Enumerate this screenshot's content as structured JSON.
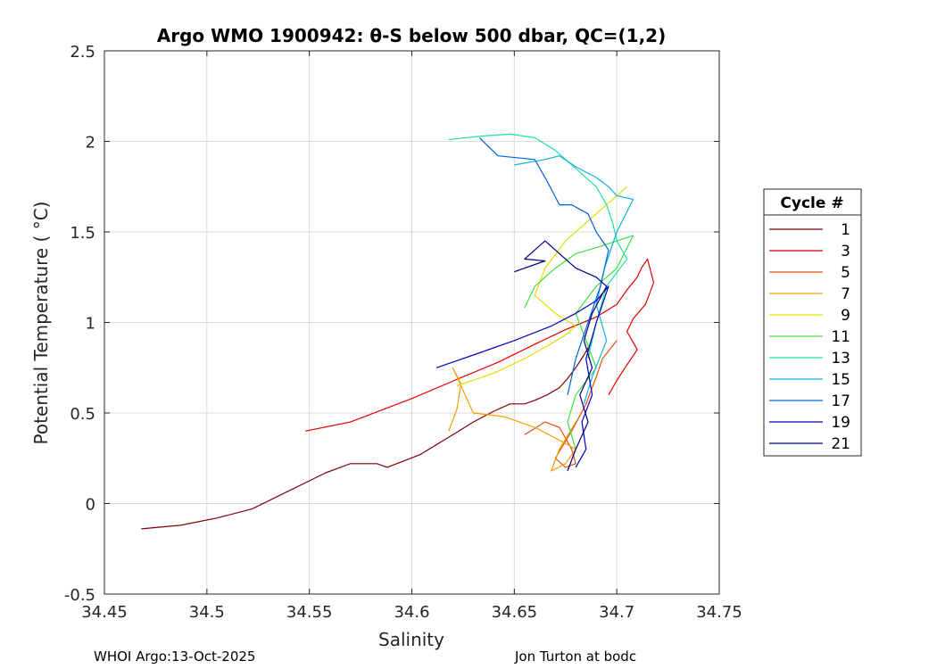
{
  "chart_data": {
    "type": "line",
    "title": "Argo WMO 1900942: θ-S below 500 dbar,  QC=(1,2)",
    "xlabel": "Salinity",
    "ylabel": "Potential Temperature ( °C)",
    "xlim": [
      34.45,
      34.75
    ],
    "ylim": [
      -0.5,
      2.5
    ],
    "x_ticks": [
      "34.45",
      "34.5",
      "34.55",
      "34.6",
      "34.65",
      "34.7",
      "34.75"
    ],
    "y_ticks": [
      "-0.5",
      "0",
      "0.5",
      "1",
      "1.5",
      "2",
      "2.5"
    ],
    "grid": true,
    "legend": {
      "title": "Cycle #",
      "position": "right",
      "entries": [
        {
          "label": "1",
          "color": "#800000"
        },
        {
          "label": "3",
          "color": "#e00000"
        },
        {
          "label": "5",
          "color": "#e05010"
        },
        {
          "label": "7",
          "color": "#f0a000"
        },
        {
          "label": "9",
          "color": "#e0e000"
        },
        {
          "label": "11",
          "color": "#40e040"
        },
        {
          "label": "13",
          "color": "#20e0a0"
        },
        {
          "label": "15",
          "color": "#10b0e0"
        },
        {
          "label": "17",
          "color": "#0060e0"
        },
        {
          "label": "19",
          "color": "#0000c0"
        },
        {
          "label": "21",
          "color": "#000080"
        }
      ]
    },
    "series": [
      {
        "name": "1",
        "color": "#800000",
        "x": [
          34.468,
          34.487,
          34.505,
          34.522,
          34.54,
          34.558,
          34.57,
          34.578,
          34.583,
          34.588,
          34.604,
          34.62,
          34.63,
          34.64,
          34.648,
          34.655,
          34.66,
          34.666,
          34.672,
          34.676,
          34.68,
          34.684,
          34.688
        ],
        "y": [
          -0.14,
          -0.12,
          -0.08,
          -0.03,
          0.07,
          0.17,
          0.22,
          0.22,
          0.22,
          0.2,
          0.27,
          0.38,
          0.45,
          0.51,
          0.55,
          0.55,
          0.57,
          0.6,
          0.64,
          0.69,
          0.75,
          0.82,
          0.9
        ]
      },
      {
        "name": "3",
        "color": "#e00000",
        "x": [
          34.548,
          34.57,
          34.6,
          34.625,
          34.642,
          34.66,
          34.675,
          34.69,
          34.7,
          34.705,
          34.71,
          34.712,
          34.715,
          34.718,
          34.714,
          34.708,
          34.705,
          34.71,
          34.704,
          34.7,
          34.696
        ],
        "y": [
          0.4,
          0.45,
          0.58,
          0.7,
          0.78,
          0.88,
          0.96,
          1.03,
          1.1,
          1.18,
          1.25,
          1.3,
          1.35,
          1.22,
          1.1,
          1.02,
          0.95,
          0.85,
          0.75,
          0.68,
          0.6
        ]
      },
      {
        "name": "5",
        "color": "#e05010",
        "x": [
          34.655,
          34.665,
          34.672,
          34.678,
          34.68,
          34.675,
          34.67,
          34.678,
          34.685,
          34.69,
          34.693,
          34.7
        ],
        "y": [
          0.38,
          0.45,
          0.42,
          0.3,
          0.22,
          0.2,
          0.25,
          0.4,
          0.55,
          0.7,
          0.8,
          0.9
        ]
      },
      {
        "name": "7",
        "color": "#f0a000",
        "x": [
          34.618,
          34.622,
          34.624,
          34.62,
          34.63,
          34.645,
          34.66,
          34.672,
          34.68,
          34.675,
          34.668,
          34.672,
          34.68
        ],
        "y": [
          0.4,
          0.52,
          0.66,
          0.75,
          0.5,
          0.48,
          0.42,
          0.35,
          0.3,
          0.22,
          0.18,
          0.3,
          0.45
        ]
      },
      {
        "name": "9",
        "color": "#e0e000",
        "x": [
          34.622,
          34.64,
          34.655,
          34.666,
          34.675,
          34.68,
          34.67,
          34.66,
          34.665,
          34.675,
          34.69,
          34.7,
          34.705
        ],
        "y": [
          0.65,
          0.72,
          0.8,
          0.87,
          0.93,
          0.98,
          1.05,
          1.15,
          1.3,
          1.45,
          1.6,
          1.7,
          1.75
        ]
      },
      {
        "name": "11",
        "color": "#40e040",
        "x": [
          34.655,
          34.66,
          34.67,
          34.68,
          34.692,
          34.7,
          34.708,
          34.7,
          34.69,
          34.68,
          34.685,
          34.69,
          34.68,
          34.676,
          34.68
        ],
        "y": [
          1.08,
          1.2,
          1.3,
          1.38,
          1.42,
          1.45,
          1.48,
          1.3,
          1.2,
          1.05,
          0.9,
          0.75,
          0.6,
          0.45,
          0.3
        ]
      },
      {
        "name": "13",
        "color": "#20e0a0",
        "x": [
          34.618,
          34.635,
          34.648,
          34.66,
          34.67,
          34.68,
          34.69,
          34.695,
          34.698,
          34.7,
          34.705,
          34.695,
          34.69,
          34.686
        ],
        "y": [
          2.01,
          2.03,
          2.04,
          2.02,
          1.95,
          1.85,
          1.75,
          1.65,
          1.55,
          1.45,
          1.35,
          1.2,
          1.0,
          0.8
        ]
      },
      {
        "name": "15",
        "color": "#10b0e0",
        "x": [
          34.65,
          34.665,
          34.672,
          34.68,
          34.69,
          34.696,
          34.7,
          34.708,
          34.7,
          34.694,
          34.69,
          34.695,
          34.688,
          34.684
        ],
        "y": [
          1.87,
          1.9,
          1.92,
          1.86,
          1.8,
          1.75,
          1.7,
          1.68,
          1.5,
          1.3,
          1.1,
          0.9,
          0.7,
          0.55
        ]
      },
      {
        "name": "17",
        "color": "#0060e0",
        "x": [
          34.633,
          34.642,
          34.66,
          34.666,
          34.672,
          34.678,
          34.686,
          34.69,
          34.696,
          34.692,
          34.686,
          34.68,
          34.676
        ],
        "y": [
          2.02,
          1.92,
          1.9,
          1.78,
          1.65,
          1.65,
          1.6,
          1.5,
          1.4,
          1.2,
          1.0,
          0.8,
          0.6
        ]
      },
      {
        "name": "19",
        "color": "#0000c0",
        "x": [
          34.612,
          34.63,
          34.65,
          34.668,
          34.68,
          34.69,
          34.696,
          34.69,
          34.685,
          34.688,
          34.683,
          34.685,
          34.68
        ],
        "y": [
          0.75,
          0.82,
          0.9,
          0.98,
          1.05,
          1.12,
          1.2,
          1.0,
          0.8,
          0.6,
          0.45,
          0.3,
          0.2
        ]
      },
      {
        "name": "21",
        "color": "#000080",
        "x": [
          34.65,
          34.665,
          34.655,
          34.665,
          34.68,
          34.69,
          34.695,
          34.688,
          34.684,
          34.688,
          34.682,
          34.686,
          34.68,
          34.676
        ],
        "y": [
          1.28,
          1.34,
          1.35,
          1.45,
          1.3,
          1.25,
          1.2,
          1.05,
          0.9,
          0.75,
          0.6,
          0.45,
          0.3,
          0.18
        ]
      }
    ]
  },
  "footer": {
    "left": "WHOI Argo:13-Oct-2025",
    "right": "Jon Turton at bodc"
  }
}
